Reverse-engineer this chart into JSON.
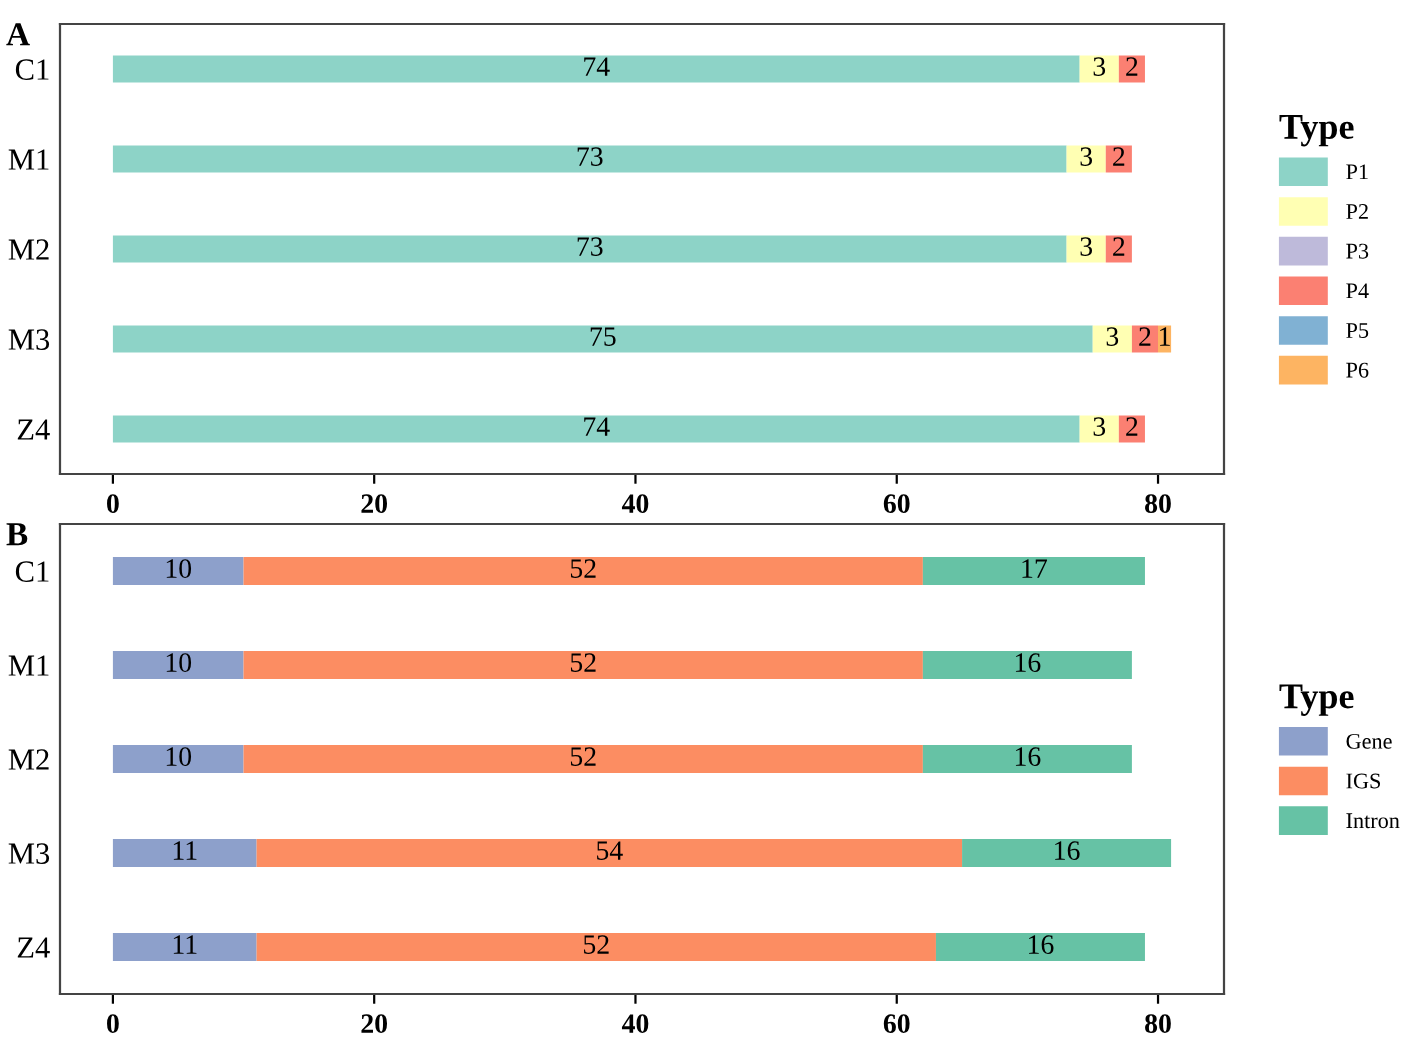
{
  "chart_data": [
    {
      "type": "bar",
      "title": "A",
      "orientation": "horizontal",
      "stacked": true,
      "categories": [
        "C1",
        "M1",
        "M2",
        "M3",
        "Z4"
      ],
      "legend_title": "Type",
      "legend": "right",
      "data_labels": true,
      "grid": false,
      "xlim": [
        -4.05,
        85.05
      ],
      "xticks": [
        0,
        20,
        40,
        60,
        80
      ],
      "series": [
        {
          "name": "P1",
          "color": "#8dd3c7",
          "values": [
            74,
            73,
            73,
            75,
            74
          ]
        },
        {
          "name": "P2",
          "color": "#ffffb3",
          "values": [
            3,
            3,
            3,
            3,
            3
          ]
        },
        {
          "name": "P3",
          "color": "#bebada",
          "values": [
            null,
            null,
            null,
            null,
            null
          ]
        },
        {
          "name": "P4",
          "color": "#fb8072",
          "values": [
            2,
            2,
            2,
            2,
            2
          ]
        },
        {
          "name": "P5",
          "color": "#80b1d3",
          "values": [
            null,
            null,
            null,
            null,
            null
          ]
        },
        {
          "name": "P6",
          "color": "#fdb462",
          "values": [
            null,
            null,
            null,
            1,
            null
          ]
        }
      ]
    },
    {
      "type": "bar",
      "title": "B",
      "orientation": "horizontal",
      "stacked": true,
      "categories": [
        "C1",
        "M1",
        "M2",
        "M3",
        "Z4"
      ],
      "legend_title": "Type",
      "legend": "right",
      "data_labels": true,
      "grid": false,
      "xlim": [
        -4.05,
        85.05
      ],
      "xticks": [
        0,
        20,
        40,
        60,
        80
      ],
      "series": [
        {
          "name": "Gene",
          "color": "#8da0cb",
          "values": [
            10,
            10,
            10,
            11,
            11
          ]
        },
        {
          "name": "IGS",
          "color": "#fc8d62",
          "values": [
            52,
            52,
            52,
            54,
            52
          ]
        },
        {
          "name": "Intron",
          "color": "#66c2a5",
          "values": [
            17,
            16,
            16,
            16,
            16
          ]
        }
      ]
    }
  ]
}
